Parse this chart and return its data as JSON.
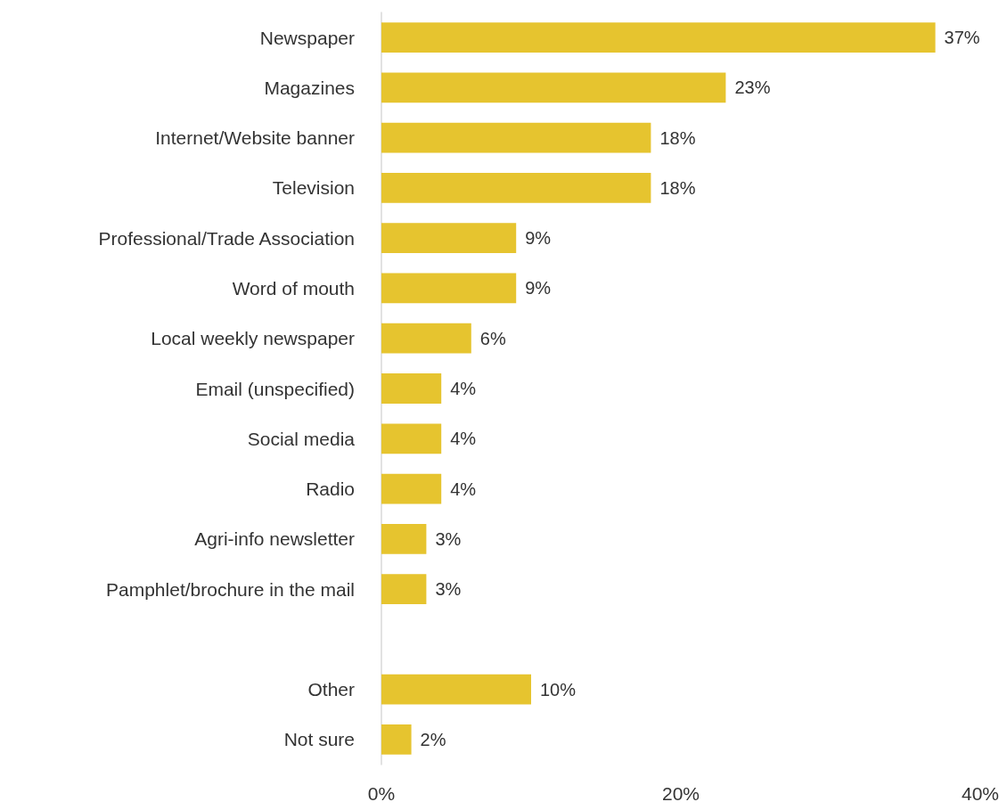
{
  "chart_data": {
    "type": "bar",
    "orientation": "horizontal",
    "categories": [
      "Newspaper",
      "Magazines",
      "Internet/Website banner",
      "Television",
      "Professional/Trade Association",
      "Word of mouth",
      "Local weekly newspaper",
      "Email (unspecified)",
      "Social media",
      "Radio",
      "Agri-info newsletter",
      "Pamphlet/brochure in the mail",
      null,
      "Other",
      "Not sure"
    ],
    "values": [
      37,
      23,
      18,
      18,
      9,
      9,
      6,
      4,
      4,
      4,
      3,
      3,
      null,
      10,
      2
    ],
    "value_labels": [
      "37%",
      "23%",
      "18%",
      "18%",
      "9%",
      "9%",
      "6%",
      "4%",
      "4%",
      "4%",
      "3%",
      "3%",
      null,
      "10%",
      "2%"
    ],
    "color": "#e6c42f",
    "xlim": [
      0,
      40
    ],
    "xticks": [
      {
        "value": 0,
        "label": "0%"
      },
      {
        "value": 20,
        "label": "20%"
      },
      {
        "value": 40,
        "label": "40%"
      }
    ],
    "grid": false
  }
}
